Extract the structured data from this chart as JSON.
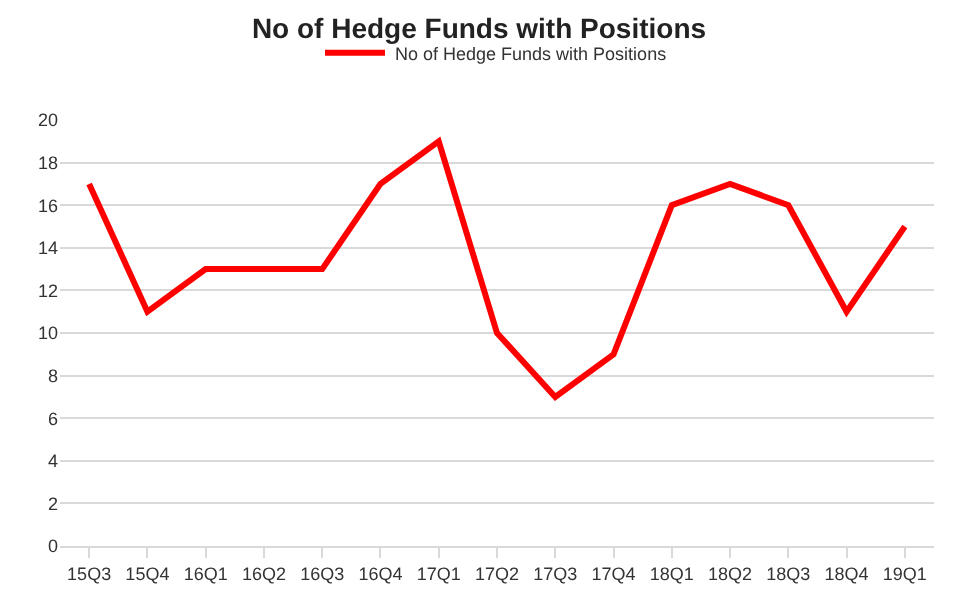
{
  "chart_data": {
    "type": "line",
    "title": "No of Hedge Funds with Positions",
    "categories": [
      "15Q3",
      "15Q4",
      "16Q1",
      "16Q2",
      "16Q3",
      "16Q4",
      "17Q1",
      "17Q2",
      "17Q3",
      "17Q4",
      "18Q1",
      "18Q2",
      "18Q3",
      "18Q4",
      "19Q1"
    ],
    "series": [
      {
        "name": "No of Hedge Funds with Positions",
        "color": "#ff0000",
        "values": [
          17,
          11,
          13,
          13,
          13,
          17,
          19,
          10,
          7,
          9,
          16,
          17,
          16,
          11,
          15
        ]
      }
    ],
    "ylim": [
      0,
      20
    ],
    "yticks": [
      0,
      2,
      4,
      6,
      8,
      10,
      12,
      14,
      16,
      18,
      20
    ],
    "grid": "y",
    "legend": "top",
    "marker": "none",
    "line_style": "solid"
  }
}
